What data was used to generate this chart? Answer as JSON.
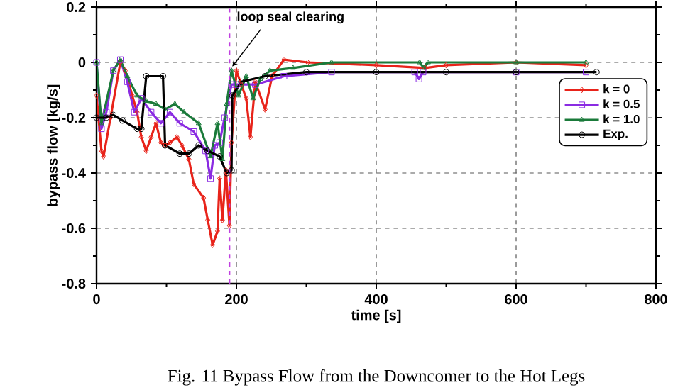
{
  "chart_data": {
    "type": "line",
    "xlabel": "time [s]",
    "ylabel": "bypass flow [kg/s]",
    "xlim": [
      0,
      800
    ],
    "ylim": [
      -0.8,
      0.2
    ],
    "xticks": [
      0,
      200,
      400,
      600,
      800
    ],
    "yticks": [
      -0.8,
      -0.6,
      -0.4,
      -0.2,
      0,
      0.2
    ],
    "grid": true,
    "legend": "right",
    "line_style": "solid",
    "series": [
      {
        "name": "k = 0",
        "color": "#e8231a",
        "marker": "diamond",
        "x": [
          0,
          7,
          10,
          20,
          34,
          41,
          51,
          58,
          64,
          71,
          78,
          85,
          92,
          98,
          105,
          115,
          122,
          132,
          139,
          153,
          159,
          166,
          173,
          176,
          180,
          185,
          190,
          193,
          200,
          207,
          214,
          220,
          227,
          241,
          251,
          268,
          302,
          400,
          470,
          500,
          600,
          700
        ],
        "values": [
          -0.12,
          -0.32,
          -0.34,
          -0.2,
          0,
          -0.03,
          -0.12,
          -0.18,
          -0.27,
          -0.32,
          -0.27,
          -0.22,
          -0.29,
          -0.3,
          -0.29,
          -0.27,
          -0.3,
          -0.35,
          -0.44,
          -0.49,
          -0.57,
          -0.66,
          -0.61,
          -0.42,
          -0.57,
          -0.39,
          -0.59,
          -0.29,
          -0.03,
          -0.08,
          -0.13,
          -0.27,
          -0.07,
          -0.17,
          -0.05,
          0.01,
          0,
          -0.01,
          -0.02,
          -0.01,
          0,
          -0.01
        ]
      },
      {
        "name": "k = 0.5",
        "color": "#8a2be2",
        "marker": "square",
        "x": [
          0,
          7,
          14,
          24,
          34,
          44,
          54,
          64,
          78,
          92,
          105,
          119,
          139,
          156,
          163,
          169,
          176,
          183,
          193,
          200,
          227,
          268,
          336,
          455,
          461,
          467,
          600,
          700
        ],
        "values": [
          0,
          -0.24,
          -0.18,
          -0.03,
          0.01,
          -0.07,
          -0.18,
          -0.13,
          -0.18,
          -0.22,
          -0.18,
          -0.22,
          -0.25,
          -0.32,
          -0.42,
          -0.3,
          -0.29,
          -0.2,
          -0.08,
          -0.08,
          -0.08,
          -0.05,
          -0.035,
          -0.035,
          -0.06,
          -0.035,
          -0.035,
          -0.035
        ]
      },
      {
        "name": "k = 1.0",
        "color": "#1a7a3a",
        "marker": "triangle",
        "x": [
          0,
          7,
          24,
          34,
          44,
          58,
          71,
          85,
          98,
          112,
          125,
          146,
          163,
          173,
          180,
          186,
          193,
          203,
          214,
          224,
          234,
          248,
          281,
          336,
          462,
          468,
          474,
          600,
          700
        ],
        "values": [
          0,
          -0.22,
          -0.03,
          0.01,
          -0.05,
          -0.12,
          -0.14,
          -0.15,
          -0.17,
          -0.15,
          -0.18,
          -0.22,
          -0.34,
          -0.22,
          -0.35,
          -0.15,
          -0.03,
          -0.12,
          -0.05,
          -0.13,
          -0.06,
          -0.03,
          -0.02,
          0,
          0,
          -0.02,
          0,
          0,
          0
        ]
      },
      {
        "name": "Exp.",
        "color": "#000000",
        "marker": "circle",
        "x": [
          0,
          14,
          24,
          37,
          58,
          64,
          71,
          95,
          98,
          119,
          132,
          146,
          159,
          176,
          186,
          193,
          194,
          207,
          241,
          300,
          400,
          500,
          600,
          715
        ],
        "values": [
          -0.2,
          -0.2,
          -0.19,
          -0.21,
          -0.24,
          -0.24,
          -0.05,
          -0.05,
          -0.3,
          -0.33,
          -0.33,
          -0.3,
          -0.32,
          -0.34,
          -0.4,
          -0.39,
          -0.12,
          -0.07,
          -0.05,
          -0.035,
          -0.035,
          -0.035,
          -0.035,
          -0.035
        ]
      }
    ],
    "ref_lines": [
      {
        "axis": "x",
        "value": 190,
        "label": "loop seal clearing",
        "color": "#c040e0",
        "line_style": "dashed"
      }
    ],
    "annotations": [
      "Fig. 11 Bypass Flow from the Downcomer to the Hot Legs"
    ]
  }
}
